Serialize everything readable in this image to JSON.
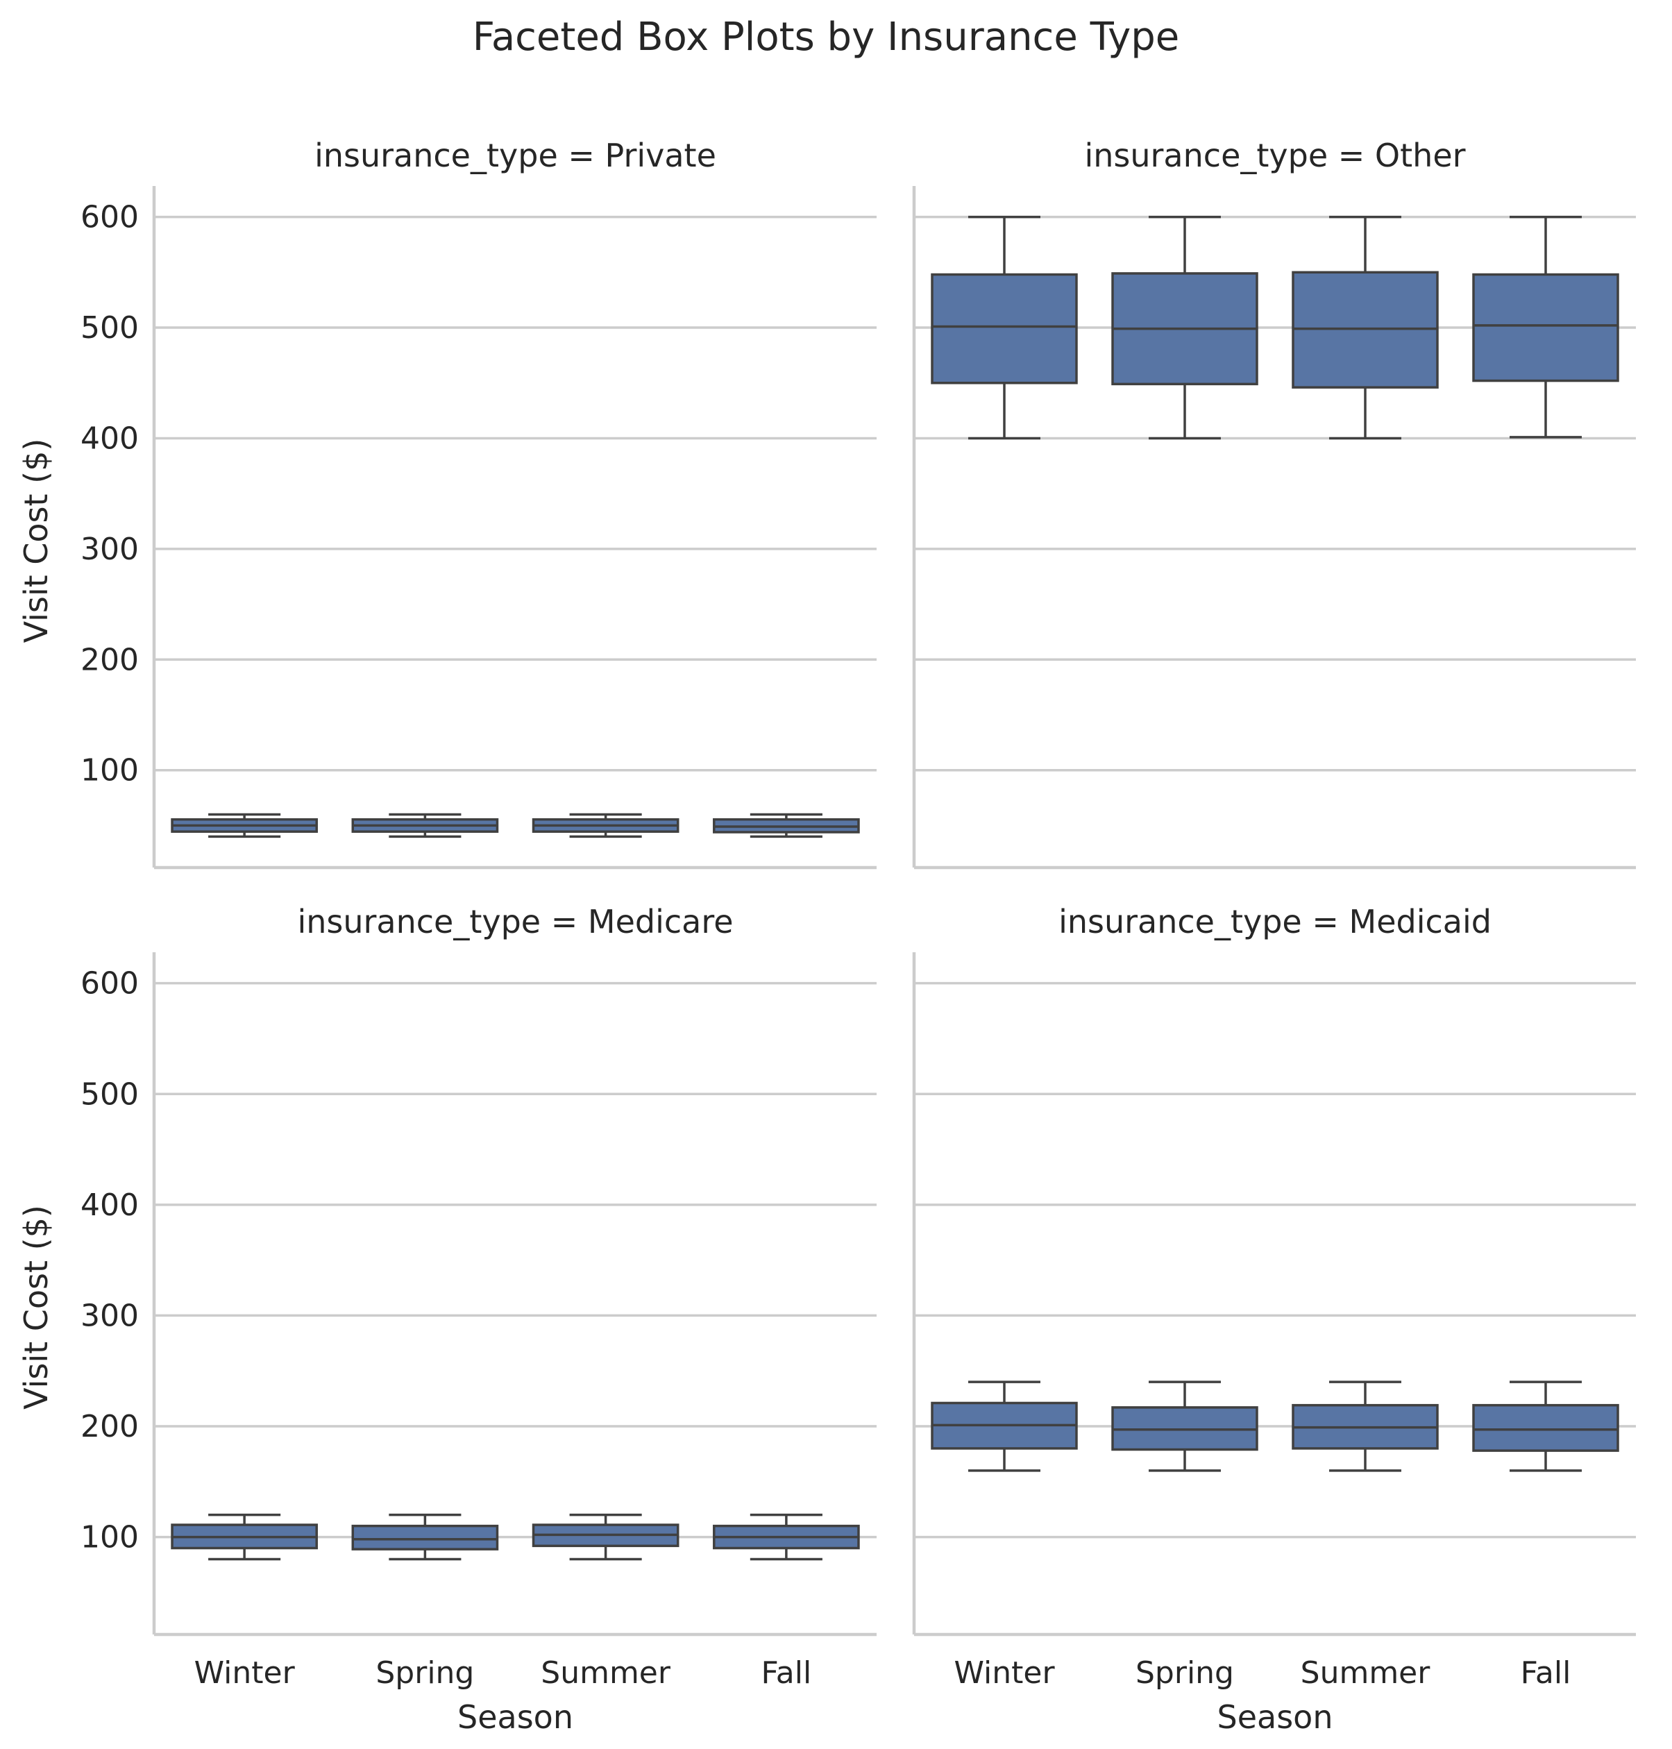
{
  "chart_data": {
    "type": "box",
    "title": "Faceted Box Plots by Insurance Type",
    "xlabel": "Season",
    "ylabel": "Visit Cost ($)",
    "categories": [
      "Winter",
      "Spring",
      "Summer",
      "Fall"
    ],
    "ylim": [
      12,
      628
    ],
    "yticks": [
      100,
      200,
      300,
      400,
      500,
      600
    ],
    "grid": "horizontal",
    "box_color": "#5875a4",
    "edge_color": "#404040",
    "facets": [
      {
        "title": "insurance_type = Private",
        "boxes": [
          {
            "category": "Winter",
            "min": 40,
            "q1": 44.5,
            "median": 50,
            "q3": 55.5,
            "max": 60
          },
          {
            "category": "Spring",
            "min": 40,
            "q1": 44.5,
            "median": 50,
            "q3": 55.5,
            "max": 60
          },
          {
            "category": "Summer",
            "min": 40,
            "q1": 44.5,
            "median": 50,
            "q3": 55.5,
            "max": 60
          },
          {
            "category": "Fall",
            "min": 40,
            "q1": 44,
            "median": 49,
            "q3": 55.5,
            "max": 60
          }
        ]
      },
      {
        "title": "insurance_type = Other",
        "boxes": [
          {
            "category": "Winter",
            "min": 400,
            "q1": 450,
            "median": 501,
            "q3": 548,
            "max": 600
          },
          {
            "category": "Spring",
            "min": 400,
            "q1": 449,
            "median": 499,
            "q3": 549,
            "max": 600
          },
          {
            "category": "Summer",
            "min": 400,
            "q1": 446,
            "median": 499,
            "q3": 550,
            "max": 600
          },
          {
            "category": "Fall",
            "min": 401,
            "q1": 452,
            "median": 502,
            "q3": 548,
            "max": 600
          }
        ]
      },
      {
        "title": "insurance_type = Medicare",
        "boxes": [
          {
            "category": "Winter",
            "min": 80,
            "q1": 90,
            "median": 100,
            "q3": 111,
            "max": 120
          },
          {
            "category": "Spring",
            "min": 80,
            "q1": 89,
            "median": 98,
            "q3": 110,
            "max": 120
          },
          {
            "category": "Summer",
            "min": 80,
            "q1": 92,
            "median": 102,
            "q3": 111,
            "max": 120
          },
          {
            "category": "Fall",
            "min": 80,
            "q1": 90,
            "median": 100,
            "q3": 110,
            "max": 120
          }
        ]
      },
      {
        "title": "insurance_type = Medicaid",
        "boxes": [
          {
            "category": "Winter",
            "min": 160,
            "q1": 180,
            "median": 201,
            "q3": 221,
            "max": 240
          },
          {
            "category": "Spring",
            "min": 160,
            "q1": 179,
            "median": 197,
            "q3": 217,
            "max": 240
          },
          {
            "category": "Summer",
            "min": 160,
            "q1": 180,
            "median": 199,
            "q3": 219,
            "max": 240
          },
          {
            "category": "Fall",
            "min": 160,
            "q1": 178,
            "median": 197,
            "q3": 219,
            "max": 240
          }
        ]
      }
    ]
  }
}
